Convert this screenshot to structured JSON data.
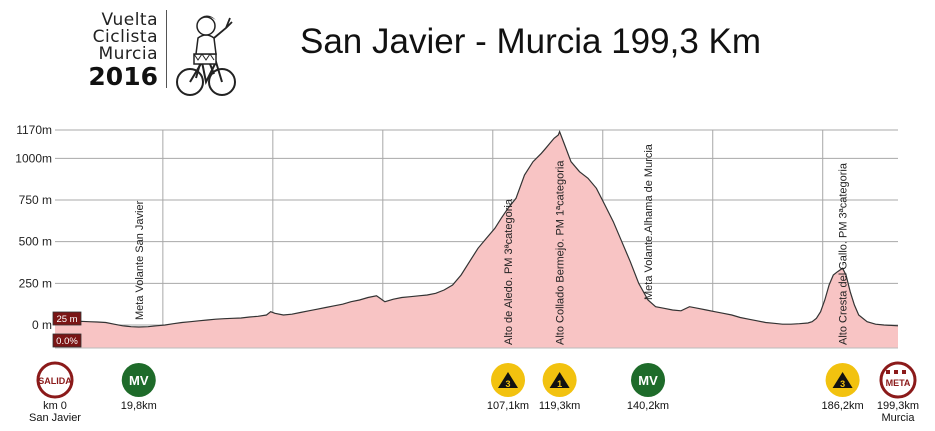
{
  "logo": {
    "lines": [
      "Vuelta",
      "Ciclista",
      "Murcia"
    ],
    "year": "2016"
  },
  "title": "San Javier - Murcia 199,3 Km",
  "colors": {
    "profile_fill": "#f8c4c4",
    "profile_line": "#333333",
    "grid_line": "#a8a8a8",
    "salida": "#8b1a1a",
    "meta": "#8b1a1a",
    "mv": "#1e6b2a",
    "climb": "#f2c20f",
    "badge_bg": "#7a1515"
  },
  "chart_data": {
    "type": "area",
    "xlabel": "",
    "ylabel": "",
    "xlim": [
      0,
      199.3
    ],
    "ylim": [
      -60,
      1170
    ],
    "yticks": [
      {
        "value": 0,
        "label": "0 m"
      },
      {
        "value": 250,
        "label": "250 m"
      },
      {
        "value": 500,
        "label": "500 m"
      },
      {
        "value": 750,
        "label": "750 m"
      },
      {
        "value": 1000,
        "label": "1000m"
      },
      {
        "value": 1170,
        "label": "1170m"
      }
    ],
    "vertical_grid_km": [
      25.5,
      51.5,
      77.5,
      103.5,
      129.5,
      155.5,
      181.5
    ],
    "x": [
      0,
      2,
      4,
      6,
      8,
      10,
      12,
      14,
      16,
      18,
      19.8,
      22,
      24,
      26,
      28,
      30,
      32,
      34,
      36,
      38,
      40,
      42,
      44,
      46,
      48,
      50,
      51,
      52,
      54,
      56,
      58,
      60,
      62,
      64,
      66,
      68,
      70,
      72,
      74,
      76,
      78,
      80,
      82,
      84,
      86,
      88,
      90,
      92,
      94,
      96,
      98,
      100,
      102,
      104,
      105.5,
      107.1,
      109,
      111,
      113,
      115,
      116,
      117,
      118,
      119,
      119.3,
      120.5,
      122,
      124,
      126,
      128,
      130,
      132,
      134,
      136,
      138,
      140.2,
      142,
      144,
      146,
      148,
      150,
      152,
      154,
      156,
      158,
      160,
      162,
      164,
      166,
      168,
      170,
      172,
      174,
      176,
      178,
      179,
      180,
      181,
      182,
      183,
      184,
      185,
      186.2,
      187,
      188,
      189,
      190,
      192,
      194,
      196,
      199.3
    ],
    "y": [
      5,
      12,
      18,
      22,
      20,
      18,
      15,
      5,
      -5,
      -10,
      -12,
      -10,
      -5,
      0,
      8,
      15,
      20,
      25,
      30,
      35,
      38,
      40,
      42,
      48,
      52,
      60,
      80,
      70,
      60,
      65,
      75,
      85,
      95,
      105,
      115,
      125,
      140,
      150,
      165,
      175,
      140,
      155,
      165,
      170,
      175,
      180,
      190,
      210,
      240,
      300,
      380,
      460,
      520,
      580,
      640,
      700,
      760,
      900,
      980,
      1030,
      1060,
      1090,
      1120,
      1140,
      1160,
      1080,
      980,
      920,
      880,
      820,
      720,
      620,
      500,
      380,
      250,
      150,
      110,
      100,
      90,
      85,
      110,
      100,
      90,
      80,
      70,
      60,
      45,
      35,
      25,
      15,
      10,
      5,
      5,
      8,
      12,
      20,
      40,
      80,
      150,
      240,
      300,
      320,
      340,
      300,
      200,
      120,
      60,
      20,
      5,
      0,
      -5
    ],
    "annotations": [
      {
        "km": 19.8,
        "label": "Meta Volante San Javier"
      },
      {
        "km": 107.1,
        "label": "Alto de Aledo. PM 3ªcategoria"
      },
      {
        "km": 119.3,
        "label": "Alto Collado Bermejo. PM 1ªcategoria"
      },
      {
        "km": 140.2,
        "label": "Meta Volante.Alhama de Murcia"
      },
      {
        "km": 186.2,
        "label": "Alto Cresta del Gallo. PM 3ªcategoria"
      }
    ],
    "badges": [
      "25 m",
      "0.0%"
    ],
    "points": [
      {
        "km": 0,
        "type": "salida",
        "icon": "SALIDA",
        "label": "km 0",
        "sublabel": "San Javier"
      },
      {
        "km": 19.8,
        "type": "mv",
        "icon": "MV",
        "label": "19,8km",
        "sublabel": ""
      },
      {
        "km": 107.1,
        "type": "climb",
        "icon": "3",
        "label": "107,1km",
        "sublabel": ""
      },
      {
        "km": 119.3,
        "type": "climb",
        "icon": "1",
        "label": "119,3km",
        "sublabel": ""
      },
      {
        "km": 140.2,
        "type": "mv",
        "icon": "MV",
        "label": "140,2km",
        "sublabel": ""
      },
      {
        "km": 186.2,
        "type": "climb",
        "icon": "3",
        "label": "186,2km",
        "sublabel": ""
      },
      {
        "km": 199.3,
        "type": "meta",
        "icon": "META",
        "label": "199,3km",
        "sublabel": "Murcia"
      }
    ]
  }
}
